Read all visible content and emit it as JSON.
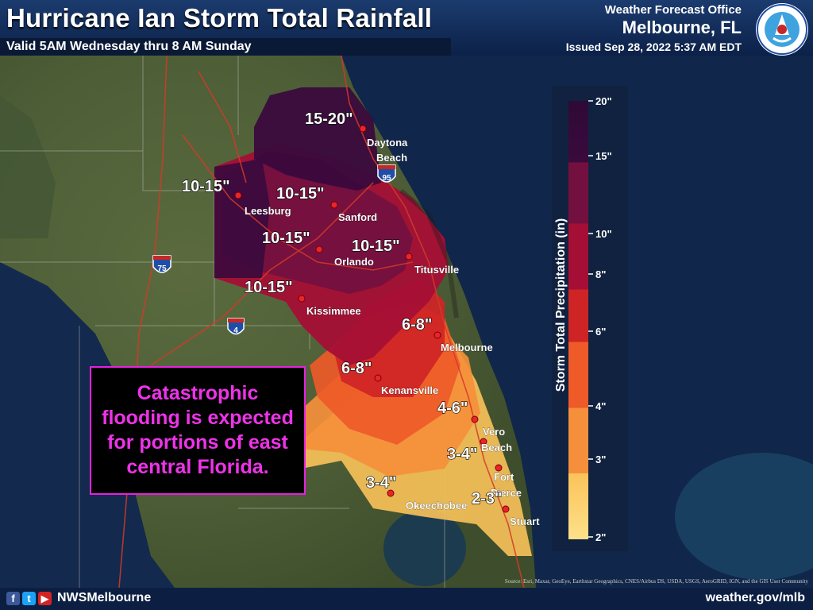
{
  "header": {
    "title": "Hurricane Ian Storm Total Rainfall",
    "subtitle": "Valid 5AM Wednesday thru 8 AM Sunday",
    "office_line1": "Weather Forecast Office",
    "office_line2": "Melbourne, FL",
    "issued": "Issued Sep 28, 2022 5:37 AM EDT",
    "logo_icon": "nws-logo-icon"
  },
  "callout": {
    "text": "Catastrophic flooding is expected for portions of east central Florida."
  },
  "legend": {
    "title": "Storm Total Precipitation (in)",
    "ticks": [
      "20\"",
      "15\"",
      "10\"",
      "8\"",
      "6\"",
      "4\"",
      "3\"",
      "2\""
    ],
    "colors": [
      "#3a0a3d",
      "#74103f",
      "#a50f35",
      "#cf2426",
      "#ee5a28",
      "#f58f3b",
      "#fbc35a",
      "#fde08a"
    ]
  },
  "map": {
    "amounts": [
      {
        "text": "15-20\""
      },
      {
        "text": "10-15\""
      },
      {
        "text": "10-15\""
      },
      {
        "text": "10-15\""
      },
      {
        "text": "10-15\""
      },
      {
        "text": "10-15\""
      },
      {
        "text": "6-8\""
      },
      {
        "text": "6-8\""
      },
      {
        "text": "4-6\""
      },
      {
        "text": "3-4\""
      },
      {
        "text": "3-4\""
      },
      {
        "text": "2-3\""
      }
    ],
    "cities": [
      "Daytona",
      "Beach",
      "Leesburg",
      "Sanford",
      "Orlando",
      "Titusville",
      "Kissimmee",
      "Melbourne",
      "Kenansville",
      "Vero",
      "Beach",
      "Fort",
      "Pierce",
      "Okeechobee",
      "Stuart"
    ],
    "shields": [
      "95",
      "75",
      "4"
    ]
  },
  "footer": {
    "social_icons": [
      "facebook-icon",
      "twitter-icon",
      "youtube-icon"
    ],
    "handle": "NWSMelbourne",
    "website": "weather.gov/mlb",
    "credits": "Source: Esri, Maxar, GeoEye, Earthstar Geographics, CNES/Airbus DS, USDA, USGS, AeroGRID, IGN, and the GIS User Community"
  }
}
